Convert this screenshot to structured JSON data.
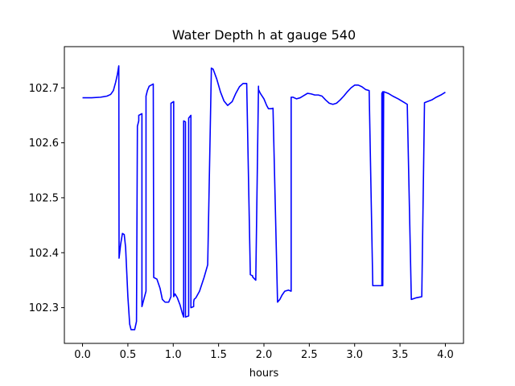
{
  "chart_data": {
    "type": "line",
    "title": "Water Depth h at gauge 540",
    "xlabel": "hours",
    "ylabel": "",
    "xlim": [
      -0.2,
      4.2
    ],
    "ylim": [
      102.235,
      102.775
    ],
    "xticks": [
      0.0,
      0.5,
      1.0,
      1.5,
      2.0,
      2.5,
      3.0,
      3.5,
      4.0
    ],
    "xtick_labels": [
      "0.0",
      "0.5",
      "1.0",
      "1.5",
      "2.0",
      "2.5",
      "3.0",
      "3.5",
      "4.0"
    ],
    "yticks": [
      102.3,
      102.4,
      102.5,
      102.6,
      102.7
    ],
    "ytick_labels": [
      "102.3",
      "102.4",
      "102.5",
      "102.6",
      "102.7"
    ],
    "grid": false,
    "legend": false,
    "series": [
      {
        "color": "#0000ff",
        "x": [
          0.0,
          0.1,
          0.2,
          0.27,
          0.31,
          0.34,
          0.365,
          0.385,
          0.4,
          0.403,
          0.403,
          0.42,
          0.44,
          0.46,
          0.475,
          0.5,
          0.52,
          0.535,
          0.55,
          0.575,
          0.595,
          0.605,
          0.62,
          0.62,
          0.655,
          0.655,
          0.66,
          0.7,
          0.7,
          0.715,
          0.735,
          0.78,
          0.785,
          0.785,
          0.82,
          0.855,
          0.88,
          0.91,
          0.95,
          0.975,
          0.975,
          1.005,
          1.005,
          1.02,
          1.045,
          1.075,
          1.1,
          1.115,
          1.115,
          1.135,
          1.135,
          1.17,
          1.17,
          1.195,
          1.195,
          1.225,
          1.225,
          1.23,
          1.25,
          1.29,
          1.34,
          1.38,
          1.42,
          1.42,
          1.44,
          1.48,
          1.52,
          1.56,
          1.6,
          1.65,
          1.69,
          1.73,
          1.77,
          1.81,
          1.85,
          1.875,
          1.875,
          1.91,
          1.94,
          1.94,
          1.96,
          2.0,
          2.03,
          2.05,
          2.08,
          2.1,
          2.15,
          2.15,
          2.175,
          2.2,
          2.23,
          2.27,
          2.3,
          2.3,
          2.32,
          2.36,
          2.4,
          2.44,
          2.48,
          2.52,
          2.56,
          2.6,
          2.64,
          2.68,
          2.72,
          2.76,
          2.8,
          2.84,
          2.88,
          2.92,
          2.96,
          3.0,
          3.04,
          3.08,
          3.12,
          3.16,
          3.2,
          3.24,
          3.24,
          3.3,
          3.3,
          3.31,
          3.31,
          3.32,
          3.32,
          3.37,
          3.42,
          3.48,
          3.53,
          3.58,
          3.625,
          3.625,
          3.68,
          3.74,
          3.74,
          3.77,
          3.8,
          3.85,
          3.9,
          3.95,
          4.0
        ],
        "values": [
          102.682,
          102.682,
          102.683,
          102.685,
          102.688,
          102.695,
          102.71,
          102.725,
          102.74,
          102.39,
          102.39,
          102.415,
          102.435,
          102.433,
          102.41,
          102.32,
          102.27,
          102.26,
          102.26,
          102.26,
          102.275,
          102.63,
          102.64,
          102.65,
          102.653,
          102.302,
          102.305,
          102.33,
          102.685,
          102.695,
          102.703,
          102.707,
          102.355,
          102.355,
          102.352,
          102.335,
          102.315,
          102.31,
          102.31,
          102.32,
          102.672,
          102.675,
          102.32,
          102.325,
          102.318,
          102.305,
          102.29,
          102.283,
          102.64,
          102.638,
          102.283,
          102.285,
          102.645,
          102.65,
          102.3,
          102.302,
          102.31,
          102.315,
          102.318,
          102.33,
          102.355,
          102.378,
          102.73,
          102.736,
          102.734,
          102.716,
          102.693,
          102.676,
          102.668,
          102.675,
          102.69,
          102.702,
          102.708,
          102.708,
          102.36,
          102.358,
          102.356,
          102.35,
          102.703,
          102.697,
          102.69,
          102.68,
          102.668,
          102.662,
          102.662,
          102.663,
          102.31,
          102.31,
          102.315,
          102.323,
          102.33,
          102.332,
          102.33,
          102.683,
          102.683,
          102.68,
          102.682,
          102.686,
          102.69,
          102.689,
          102.687,
          102.687,
          102.685,
          102.678,
          102.672,
          102.67,
          102.672,
          102.678,
          102.685,
          102.693,
          102.7,
          102.705,
          102.705,
          102.702,
          102.697,
          102.695,
          102.34,
          102.34,
          102.34,
          102.34,
          102.69,
          102.693,
          102.34,
          102.693,
          102.693,
          102.69,
          102.685,
          102.68,
          102.675,
          102.67,
          102.315,
          102.315,
          102.318,
          102.32,
          102.32,
          102.673,
          102.675,
          102.678,
          102.683,
          102.687,
          102.692
        ]
      }
    ]
  }
}
